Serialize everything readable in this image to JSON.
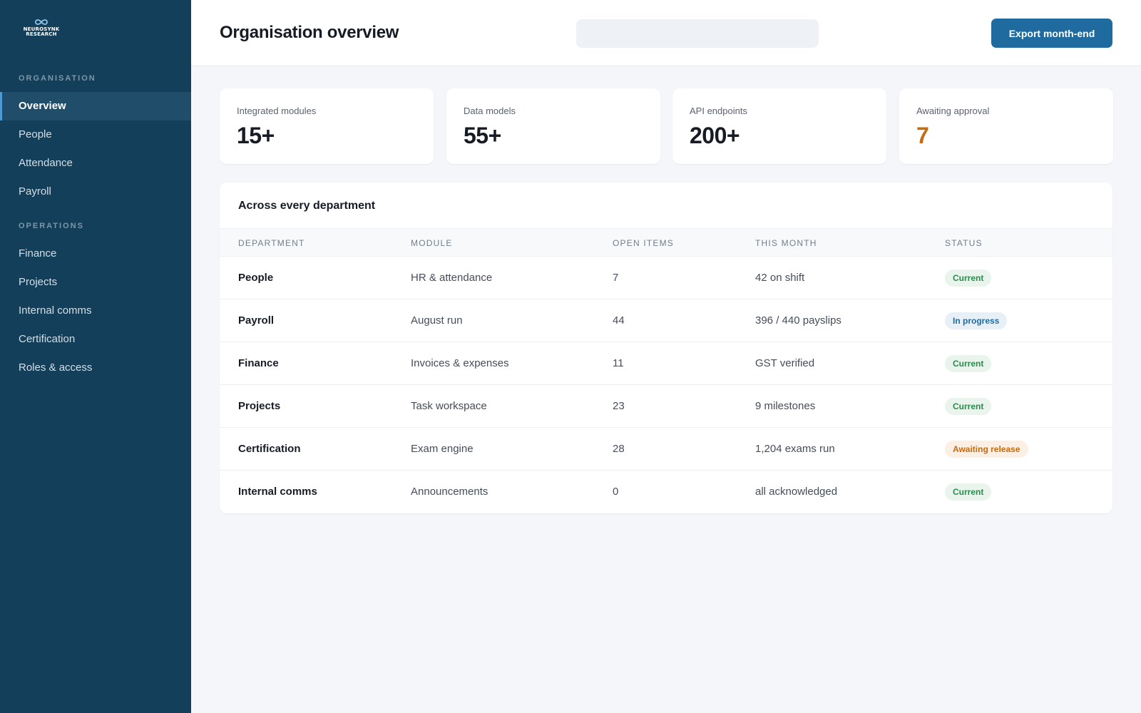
{
  "sidebar": {
    "brand": {
      "line1": "NEUROSYNK",
      "line2": "RESEARCH"
    },
    "sections": [
      {
        "label": "ORGANISATION",
        "items": [
          {
            "label": "Overview",
            "active": true
          },
          {
            "label": "People"
          },
          {
            "label": "Attendance"
          },
          {
            "label": "Payroll"
          }
        ]
      },
      {
        "label": "OPERATIONS",
        "items": [
          {
            "label": "Finance"
          },
          {
            "label": "Projects"
          },
          {
            "label": "Internal comms"
          },
          {
            "label": "Certification"
          },
          {
            "label": "Roles & access"
          }
        ]
      }
    ]
  },
  "header": {
    "title": "Organisation overview",
    "search": {
      "value": "",
      "placeholder": ""
    },
    "export_label": "Export month-end"
  },
  "stats": [
    {
      "label": "Integrated modules",
      "value": "15+"
    },
    {
      "label": "Data models",
      "value": "55+"
    },
    {
      "label": "API endpoints",
      "value": "200+"
    },
    {
      "label": "Awaiting approval",
      "value": "7"
    }
  ],
  "table": {
    "title": "Across every department",
    "columns": [
      "Department",
      "Module",
      "Open items",
      "This month",
      "Status"
    ],
    "rows": [
      {
        "department": "People",
        "module": "HR & attendance",
        "open_items": "7",
        "this_month": "42 on shift",
        "status": "Current"
      },
      {
        "department": "Payroll",
        "module": "August run",
        "open_items": "44",
        "this_month": "396 / 440 payslips",
        "status": "In progress"
      },
      {
        "department": "Finance",
        "module": "Invoices & expenses",
        "open_items": "11",
        "this_month": "GST verified",
        "status": "Current"
      },
      {
        "department": "Projects",
        "module": "Task workspace",
        "open_items": "23",
        "this_month": "9 milestones",
        "status": "Current"
      },
      {
        "department": "Certification",
        "module": "Exam engine",
        "open_items": "28",
        "this_month": "1,204 exams run",
        "status": "Awaiting release"
      },
      {
        "department": "Internal comms",
        "module": "Announcements",
        "open_items": "0",
        "this_month": "all acknowledged",
        "status": "Current"
      }
    ]
  },
  "colors": {
    "sidebar_bg": "#143f5a",
    "accent": "#1f6b9f",
    "status_current": "#2c8c4d",
    "status_progress": "#1f6b9f",
    "status_awaiting": "#c46b14"
  },
  "icons": {
    "brand": "infinity-logo-icon"
  }
}
